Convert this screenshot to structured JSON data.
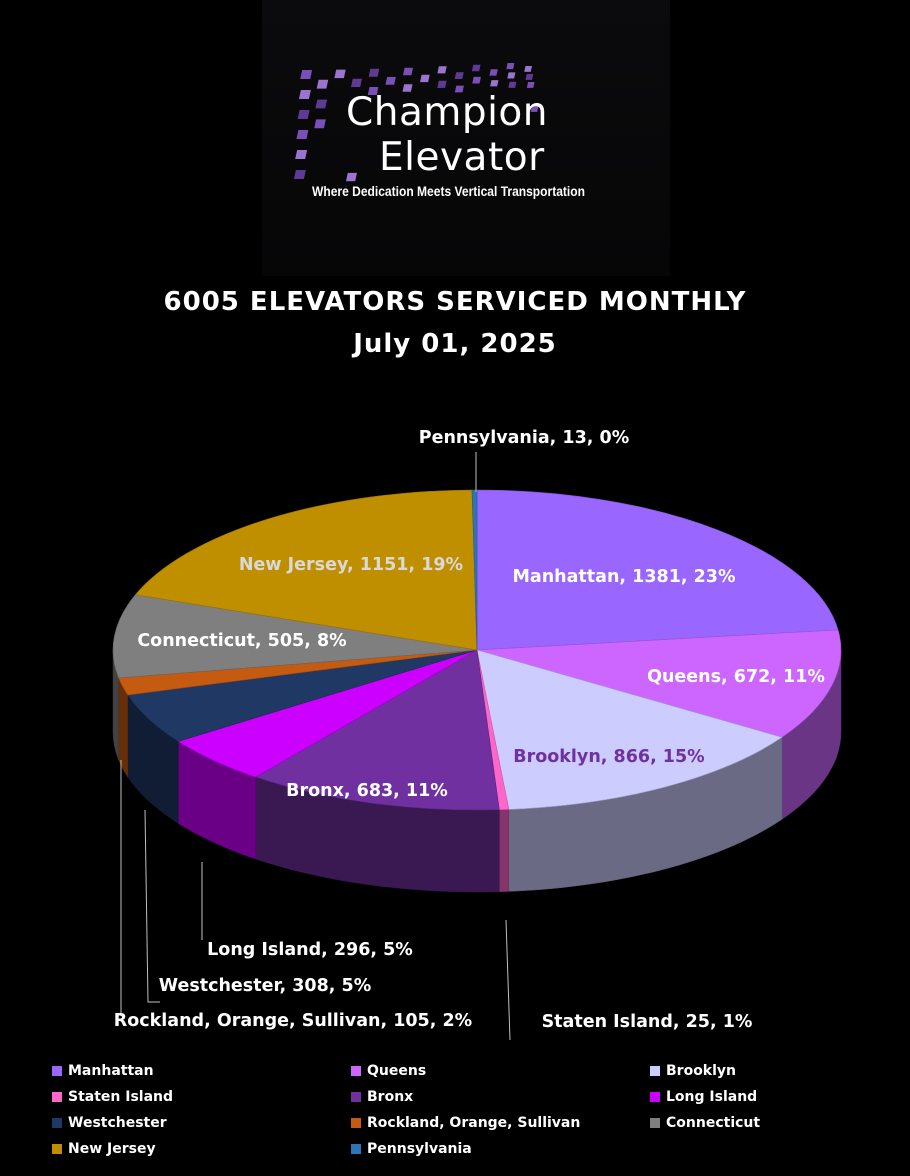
{
  "brand": {
    "line1": "Champion",
    "line2": "Elevator",
    "tagline": "Where Dedication Meets Vertical Transportation"
  },
  "chart_data": {
    "type": "pie",
    "title": "6005 ELEVATORS SERVICED MONTHLY",
    "subtitle": "July 01, 2025",
    "legend_position": "bottom",
    "slices": [
      {
        "name": "Manhattan",
        "value": 1381,
        "percent": "23%",
        "color": "#9966ff",
        "label_color": "#ffffff"
      },
      {
        "name": "Queens",
        "value": 672,
        "percent": "11%",
        "color": "#cc66ff",
        "label_color": "#ffffff"
      },
      {
        "name": "Brooklyn",
        "value": 866,
        "percent": "15%",
        "color": "#ccccff",
        "label_color": "#7030a0"
      },
      {
        "name": "Staten Island",
        "value": 25,
        "percent": "1%",
        "color": "#ff66cc",
        "label_color": "#ffffff"
      },
      {
        "name": "Bronx",
        "value": 683,
        "percent": "11%",
        "color": "#7030a0",
        "label_color": "#ffffff"
      },
      {
        "name": "Long Island",
        "value": 296,
        "percent": "5%",
        "color": "#cc00ff",
        "label_color": "#ffffff"
      },
      {
        "name": "Westchester",
        "value": 308,
        "percent": "5%",
        "color": "#1f3864",
        "label_color": "#ffffff"
      },
      {
        "name": "Rockland, Orange, Sullivan",
        "value": 105,
        "percent": "2%",
        "color": "#c55a11",
        "label_color": "#ffffff"
      },
      {
        "name": "Connecticut",
        "value": 505,
        "percent": "8%",
        "color": "#7f7f7f",
        "label_color": "#ffffff"
      },
      {
        "name": "New Jersey",
        "value": 1151,
        "percent": "19%",
        "color": "#bf8f00",
        "label_color": "#d9d9d9"
      },
      {
        "name": "Pennsylvania",
        "value": 13,
        "percent": "0%",
        "color": "#2e75b6",
        "label_color": "#ffffff"
      }
    ]
  }
}
